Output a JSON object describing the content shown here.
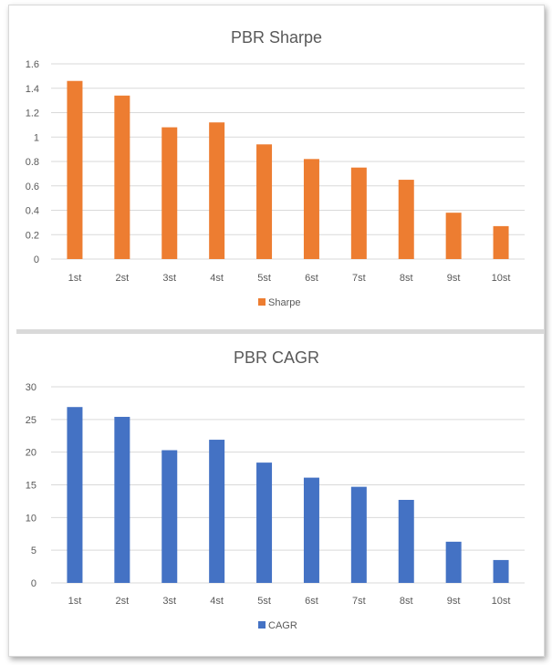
{
  "chart_data": [
    {
      "type": "bar",
      "title": "PBR Sharpe",
      "categories": [
        "1st",
        "2st",
        "3st",
        "4st",
        "5st",
        "6st",
        "7st",
        "8st",
        "9st",
        "10st"
      ],
      "series": [
        {
          "name": "Sharpe",
          "color": "#ED7D31",
          "values": [
            1.46,
            1.34,
            1.08,
            1.12,
            0.94,
            0.82,
            0.75,
            0.65,
            0.38,
            0.27
          ]
        }
      ],
      "ylim": [
        0,
        1.6
      ],
      "yticks": [
        "0",
        "0.2",
        "0.4",
        "0.6",
        "0.8",
        "1",
        "1.2",
        "1.4",
        "1.6"
      ],
      "grid": true,
      "legend": "bottom"
    },
    {
      "type": "bar",
      "title": "PBR CAGR",
      "categories": [
        "1st",
        "2st",
        "3st",
        "4st",
        "5st",
        "6st",
        "7st",
        "8st",
        "9st",
        "10st"
      ],
      "series": [
        {
          "name": "CAGR",
          "color": "#4472C4",
          "values": [
            26.9,
            25.4,
            20.3,
            21.9,
            18.4,
            16.1,
            14.7,
            12.7,
            6.3,
            3.5
          ]
        }
      ],
      "ylim": [
        0,
        30
      ],
      "yticks": [
        "0",
        "5",
        "10",
        "15",
        "20",
        "25",
        "30"
      ],
      "grid": true,
      "legend": "bottom"
    }
  ]
}
